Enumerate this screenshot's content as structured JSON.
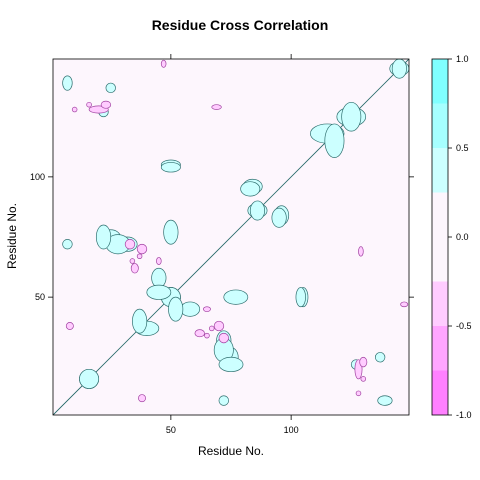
{
  "chart_data": {
    "type": "heatmap",
    "title": "Residue Cross Correlation",
    "xlabel": "Residue No.",
    "ylabel": "Residue No.",
    "xlim": [
      1,
      149
    ],
    "ylim": [
      1,
      149
    ],
    "xticks": [
      50,
      100
    ],
    "yticks": [
      50,
      100
    ],
    "grid": false,
    "legend": "right",
    "colorkey": {
      "ticks": [
        "1.0",
        "0.5",
        "0.0",
        "-0.5",
        "-1.0"
      ],
      "tick_values": [
        1.0,
        0.5,
        0.0,
        -0.5,
        -1.0
      ],
      "breaks": [
        {
          "from": 0.75,
          "to": 1.0,
          "color": "#80ffff"
        },
        {
          "from": 0.5,
          "to": 0.75,
          "color": "#a6ffff"
        },
        {
          "from": 0.25,
          "to": 0.5,
          "color": "#ccffff"
        },
        {
          "from": -0.25,
          "to": 0.25,
          "color": "#fdf6fd"
        },
        {
          "from": -0.5,
          "to": -0.25,
          "color": "#ffccff"
        },
        {
          "from": -0.75,
          "to": -0.5,
          "color": "#ffa6ff"
        },
        {
          "from": -1.0,
          "to": -0.75,
          "color": "#ff80ff"
        }
      ]
    },
    "background_color": "#fdf6fd",
    "positive_color": "#ccffff",
    "positive_strong_color": "#80ffff",
    "negative_color": "#ffccff",
    "line_color": "#2f6f6f",
    "positive_regions": [
      {
        "x": 16,
        "y": 16,
        "rx": 4,
        "ry": 4
      },
      {
        "x": 40,
        "y": 37,
        "rx": 5,
        "ry": 3
      },
      {
        "x": 50,
        "y": 50,
        "rx": 4,
        "ry": 4
      },
      {
        "x": 58,
        "y": 45,
        "rx": 4,
        "ry": 3
      },
      {
        "x": 77,
        "y": 50,
        "rx": 5,
        "ry": 3
      },
      {
        "x": 115,
        "y": 118,
        "rx": 7,
        "ry": 4
      },
      {
        "x": 125,
        "y": 125,
        "rx": 6,
        "ry": 4
      },
      {
        "x": 145,
        "y": 145,
        "rx": 4,
        "ry": 3
      },
      {
        "x": 25,
        "y": 75,
        "rx": 4,
        "ry": 3
      },
      {
        "x": 32,
        "y": 72,
        "rx": 4,
        "ry": 3
      },
      {
        "x": 45,
        "y": 52,
        "rx": 5,
        "ry": 3
      },
      {
        "x": 72,
        "y": 28,
        "rx": 4,
        "ry": 5
      },
      {
        "x": 75,
        "y": 22,
        "rx": 5,
        "ry": 3
      },
      {
        "x": 84,
        "y": 96,
        "rx": 4,
        "ry": 3
      },
      {
        "x": 95,
        "y": 83,
        "rx": 3,
        "ry": 4
      },
      {
        "x": 86,
        "y": 86,
        "rx": 4,
        "ry": 3
      },
      {
        "x": 50,
        "y": 105,
        "rx": 4,
        "ry": 2
      },
      {
        "x": 104,
        "y": 50,
        "rx": 2,
        "ry": 4
      },
      {
        "x": 139,
        "y": 7,
        "rx": 3,
        "ry": 2
      },
      {
        "x": 7,
        "y": 72,
        "rx": 2,
        "ry": 2
      },
      {
        "x": 127,
        "y": 22,
        "rx": 2,
        "ry": 2
      },
      {
        "x": 137,
        "y": 25,
        "rx": 2,
        "ry": 2
      }
    ],
    "negative_regions": [
      {
        "x": 8,
        "y": 38,
        "rx": 1.5,
        "ry": 1.5
      },
      {
        "x": 38,
        "y": 70,
        "rx": 2,
        "ry": 2
      },
      {
        "x": 34,
        "y": 65,
        "rx": 1,
        "ry": 1
      },
      {
        "x": 62,
        "y": 35,
        "rx": 2,
        "ry": 1.5
      },
      {
        "x": 72,
        "y": 33,
        "rx": 2,
        "ry": 2
      },
      {
        "x": 67,
        "y": 37,
        "rx": 1,
        "ry": 1
      },
      {
        "x": 65,
        "y": 45,
        "rx": 1.5,
        "ry": 1
      },
      {
        "x": 20,
        "y": 128,
        "rx": 4,
        "ry": 1.5
      },
      {
        "x": 69,
        "y": 129,
        "rx": 2,
        "ry": 1
      },
      {
        "x": 130,
        "y": 23,
        "rx": 1.5,
        "ry": 2
      },
      {
        "x": 130,
        "y": 16,
        "rx": 1,
        "ry": 1
      },
      {
        "x": 10,
        "y": 128,
        "rx": 1,
        "ry": 1
      },
      {
        "x": 47,
        "y": 147,
        "rx": 1,
        "ry": 1.5
      }
    ]
  }
}
